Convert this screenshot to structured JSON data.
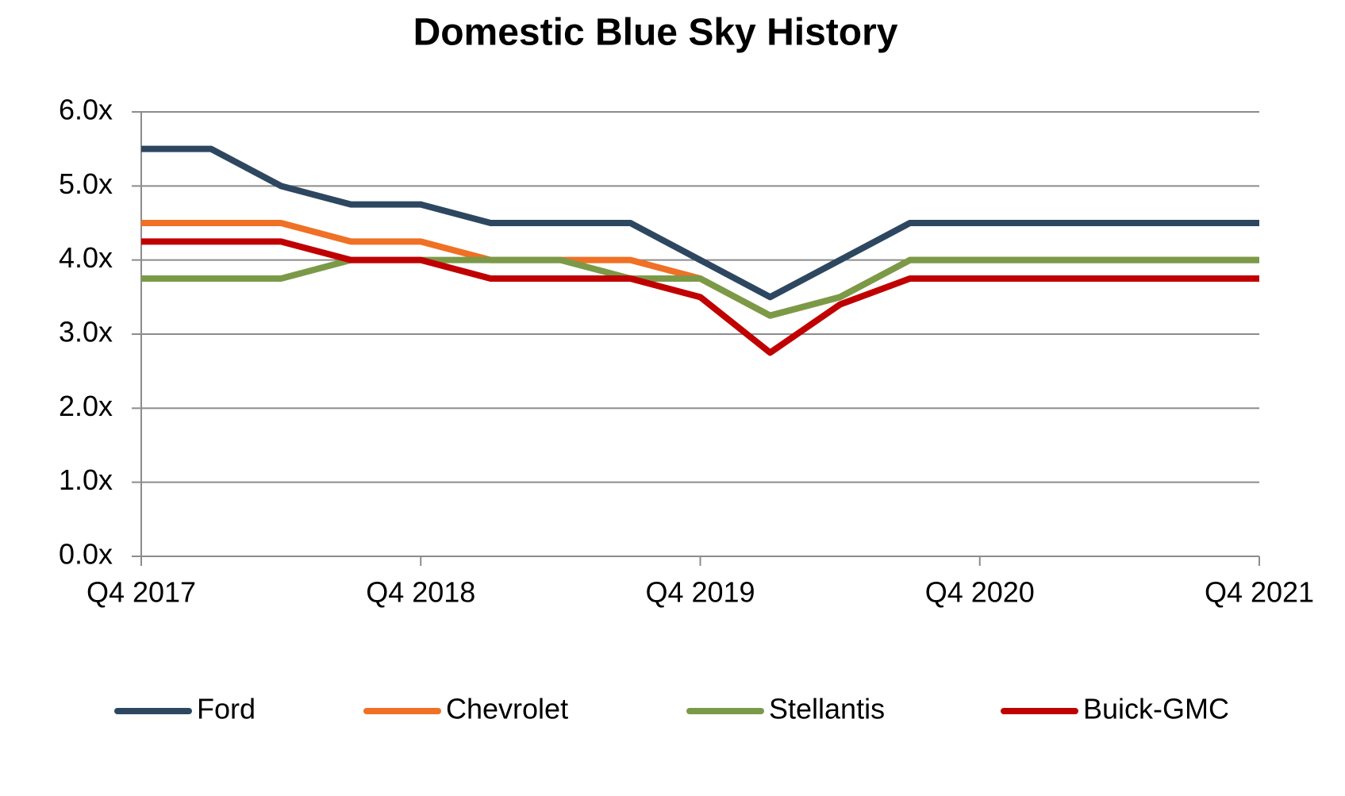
{
  "chart_data": {
    "type": "line",
    "title": "Domestic Blue Sky History",
    "categories": [
      "Q4 2017",
      null,
      null,
      null,
      "Q4 2018",
      null,
      null,
      null,
      "Q4 2019",
      null,
      null,
      null,
      "Q4 2020",
      null,
      null,
      null,
      "Q4 2021"
    ],
    "series": [
      {
        "name": "Ford",
        "color": "#2e4760",
        "values": [
          5.5,
          5.5,
          5.0,
          4.75,
          4.75,
          4.5,
          4.5,
          4.5,
          4.0,
          3.5,
          4.0,
          4.5,
          4.5,
          4.5,
          4.5,
          4.5,
          4.5
        ]
      },
      {
        "name": "Chevrolet",
        "color": "#f07025",
        "values": [
          4.5,
          4.5,
          4.5,
          4.25,
          4.25,
          4.0,
          4.0,
          4.0,
          3.75,
          3.25,
          3.5,
          4.0,
          4.0,
          4.0,
          4.0,
          4.0,
          4.0
        ]
      },
      {
        "name": "Stellantis",
        "color": "#7b9a48",
        "values": [
          3.75,
          3.75,
          3.75,
          4.0,
          4.0,
          4.0,
          4.0,
          3.75,
          3.75,
          3.25,
          3.5,
          4.0,
          4.0,
          4.0,
          4.0,
          4.0,
          4.0
        ]
      },
      {
        "name": "Buick-GMC",
        "color": "#c00000",
        "values": [
          4.25,
          4.25,
          4.25,
          4.0,
          4.0,
          3.75,
          3.75,
          3.75,
          3.5,
          2.75,
          3.4,
          3.75,
          3.75,
          3.75,
          3.75,
          3.75,
          3.75
        ]
      }
    ],
    "ylim": [
      0,
      6
    ],
    "yticks": [
      {
        "value": 0,
        "label": "0.0x"
      },
      {
        "value": 1,
        "label": "1.0x"
      },
      {
        "value": 2,
        "label": "2.0x"
      },
      {
        "value": 3,
        "label": "3.0x"
      },
      {
        "value": 4,
        "label": "4.0x"
      },
      {
        "value": 5,
        "label": "5.0x"
      },
      {
        "value": 6,
        "label": "6.0x"
      }
    ],
    "grid": true,
    "legend": "bottom"
  }
}
